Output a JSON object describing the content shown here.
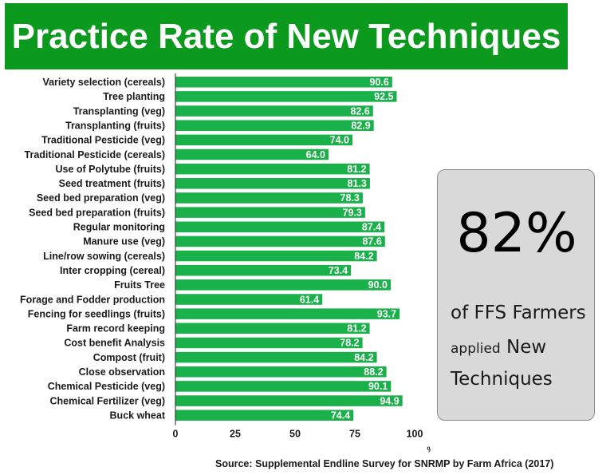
{
  "header": {
    "title": "Practice Rate of New Techniques"
  },
  "callout": {
    "big": "82%",
    "line1": "of FFS Farmers",
    "line2_small": "applied",
    "line2_rest": " New",
    "line3": "Techniques"
  },
  "source": "Source: Supplemental Endline Survey for SNRMP by Farm Africa (2017)",
  "colors": {
    "bar": "#1ab14a",
    "title_bg": "#0b9a1e",
    "label": "#ffffff"
  },
  "chart_data": {
    "type": "bar",
    "orientation": "horizontal",
    "categories": [
      "Variety selection (cereals)",
      "Tree planting",
      "Transplanting (veg)",
      "Transplanting (fruits)",
      "Traditional Pesticide (veg)",
      "Traditional Pesticide (cereals)",
      "Use of Polytube (fruits)",
      "Seed treatment (fruits)",
      "Seed bed preparation (veg)",
      "Seed bed preparation (fruits)",
      "Regular monitoring",
      "Manure use (veg)",
      "Line/row sowing (cereals)",
      "Inter cropping (cereal)",
      "Fruits Tree",
      "Forage and Fodder production",
      "Fencing for seedlings (fruits)",
      "Farm record keeping",
      "Cost benefit Analysis",
      "Compost (fruit)",
      "Close observation",
      "Chemical Pesticide (veg)",
      "Chemical Fertilizer (veg)",
      "Buck wheat"
    ],
    "values": [
      90.6,
      92.5,
      82.6,
      82.9,
      74.0,
      64.0,
      81.2,
      81.3,
      78.3,
      79.3,
      87.4,
      87.6,
      84.2,
      73.4,
      90.0,
      61.4,
      93.7,
      81.2,
      78.2,
      84.2,
      88.2,
      90.1,
      94.9,
      74.4
    ],
    "xticks": [
      "0",
      "25",
      "50",
      "75",
      "100"
    ],
    "xlabel": "%",
    "xlim": [
      0,
      100
    ],
    "grid": false
  }
}
